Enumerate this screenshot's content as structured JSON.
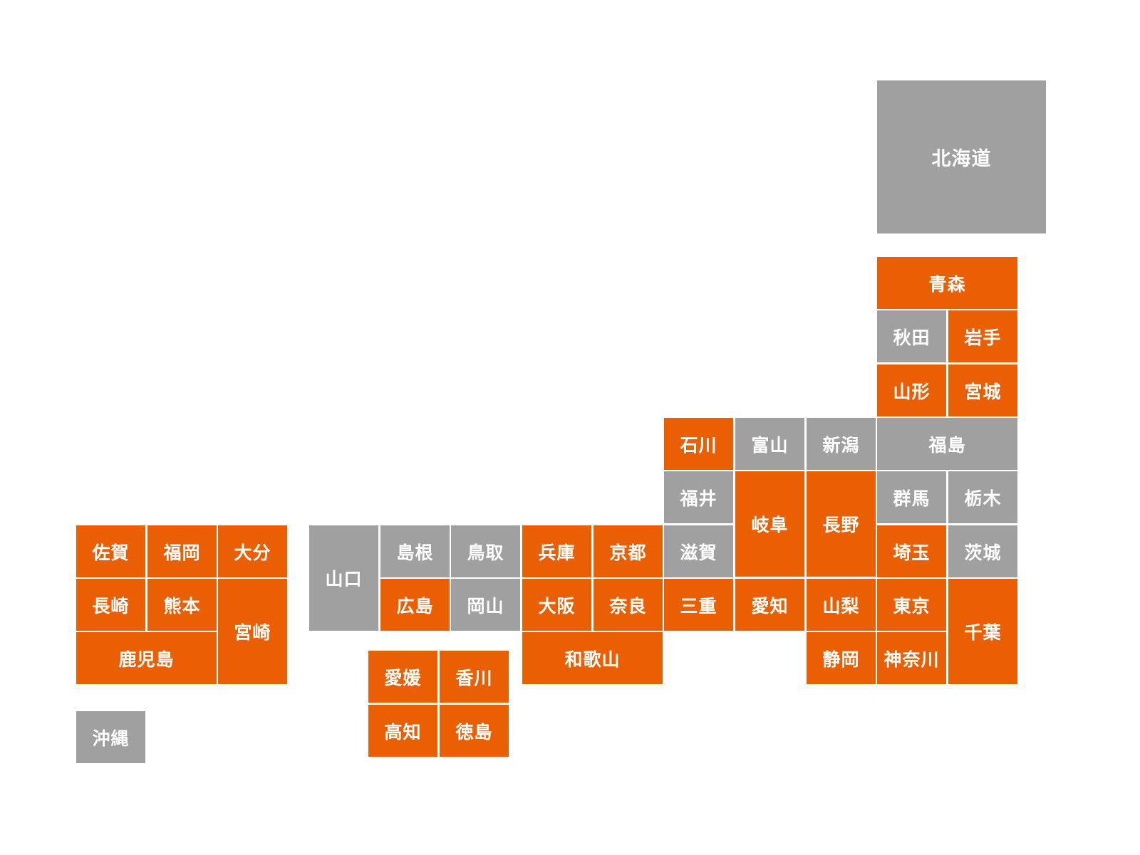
{
  "colors": {
    "highlighted": "#ea5f03",
    "other": "#a0a0a0",
    "text": "#ffffff",
    "background": "#ffffff"
  },
  "prefectures": [
    {
      "id": "hokkaido",
      "name": "北海道",
      "status": "other"
    },
    {
      "id": "aomori",
      "name": "青森",
      "status": "highlighted"
    },
    {
      "id": "akita",
      "name": "秋田",
      "status": "other"
    },
    {
      "id": "iwate",
      "name": "岩手",
      "status": "highlighted"
    },
    {
      "id": "yamagata",
      "name": "山形",
      "status": "highlighted"
    },
    {
      "id": "miyagi",
      "name": "宮城",
      "status": "highlighted"
    },
    {
      "id": "ishikawa",
      "name": "石川",
      "status": "highlighted"
    },
    {
      "id": "toyama",
      "name": "富山",
      "status": "other"
    },
    {
      "id": "niigata",
      "name": "新潟",
      "status": "other"
    },
    {
      "id": "fukushima",
      "name": "福島",
      "status": "other"
    },
    {
      "id": "fukui",
      "name": "福井",
      "status": "other"
    },
    {
      "id": "gifu",
      "name": "岐阜",
      "status": "highlighted"
    },
    {
      "id": "nagano",
      "name": "長野",
      "status": "highlighted"
    },
    {
      "id": "gunma",
      "name": "群馬",
      "status": "other"
    },
    {
      "id": "tochigi",
      "name": "栃木",
      "status": "other"
    },
    {
      "id": "saga",
      "name": "佐賀",
      "status": "highlighted"
    },
    {
      "id": "fukuoka",
      "name": "福岡",
      "status": "highlighted"
    },
    {
      "id": "oita",
      "name": "大分",
      "status": "highlighted"
    },
    {
      "id": "yamaguchi",
      "name": "山口",
      "status": "other"
    },
    {
      "id": "shimane",
      "name": "島根",
      "status": "other"
    },
    {
      "id": "tottori",
      "name": "鳥取",
      "status": "other"
    },
    {
      "id": "hyogo",
      "name": "兵庫",
      "status": "highlighted"
    },
    {
      "id": "kyoto",
      "name": "京都",
      "status": "highlighted"
    },
    {
      "id": "shiga",
      "name": "滋賀",
      "status": "other"
    },
    {
      "id": "saitama",
      "name": "埼玉",
      "status": "highlighted"
    },
    {
      "id": "ibaraki",
      "name": "茨城",
      "status": "other"
    },
    {
      "id": "nagasaki",
      "name": "長崎",
      "status": "highlighted"
    },
    {
      "id": "kumamoto",
      "name": "熊本",
      "status": "highlighted"
    },
    {
      "id": "miyazaki",
      "name": "宮崎",
      "status": "highlighted"
    },
    {
      "id": "hiroshima",
      "name": "広島",
      "status": "highlighted"
    },
    {
      "id": "okayama",
      "name": "岡山",
      "status": "other"
    },
    {
      "id": "osaka",
      "name": "大阪",
      "status": "highlighted"
    },
    {
      "id": "nara",
      "name": "奈良",
      "status": "highlighted"
    },
    {
      "id": "mie",
      "name": "三重",
      "status": "highlighted"
    },
    {
      "id": "aichi",
      "name": "愛知",
      "status": "highlighted"
    },
    {
      "id": "yamanashi",
      "name": "山梨",
      "status": "highlighted"
    },
    {
      "id": "tokyo",
      "name": "東京",
      "status": "highlighted"
    },
    {
      "id": "chiba",
      "name": "千葉",
      "status": "highlighted"
    },
    {
      "id": "kagoshima",
      "name": "鹿児島",
      "status": "highlighted"
    },
    {
      "id": "wakayama",
      "name": "和歌山",
      "status": "highlighted"
    },
    {
      "id": "shizuoka",
      "name": "静岡",
      "status": "highlighted"
    },
    {
      "id": "kanagawa",
      "name": "神奈川",
      "status": "highlighted"
    },
    {
      "id": "ehime",
      "name": "愛媛",
      "status": "highlighted"
    },
    {
      "id": "kagawa",
      "name": "香川",
      "status": "highlighted"
    },
    {
      "id": "kochi",
      "name": "高知",
      "status": "highlighted"
    },
    {
      "id": "tokushima",
      "name": "徳島",
      "status": "highlighted"
    },
    {
      "id": "okinawa",
      "name": "沖縄",
      "status": "other"
    }
  ]
}
